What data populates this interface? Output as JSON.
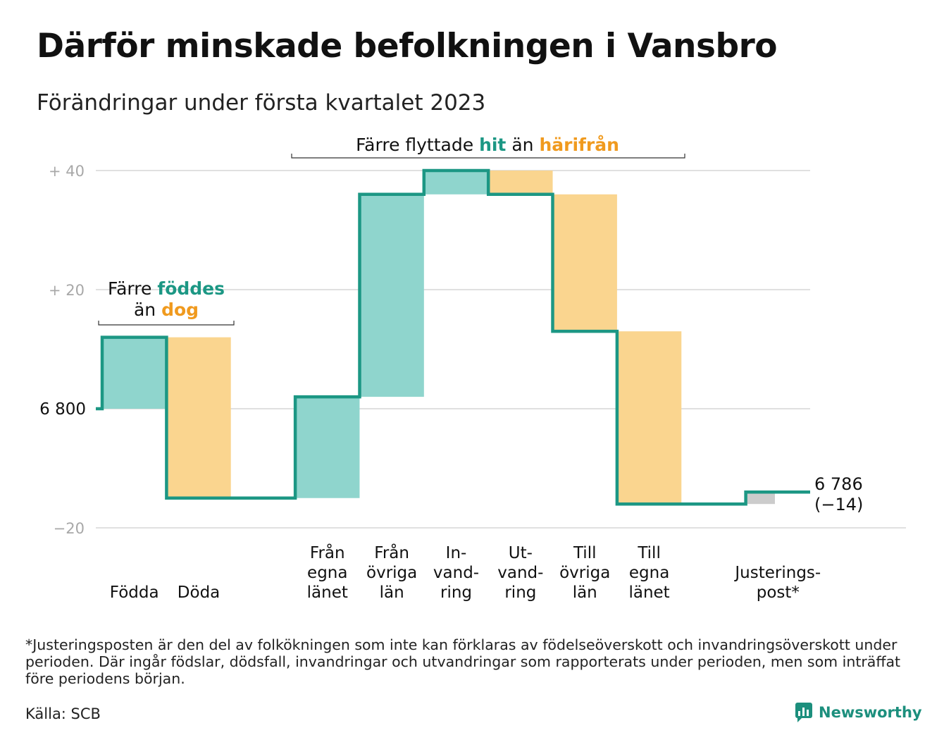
{
  "title": "Därför minskade befolkningen i Vansbro",
  "subtitle": "Förändringar under första kvartalet 2023",
  "colors": {
    "increase": "#8fd5cd",
    "decrease": "#fad58f",
    "adjustment": "#cccccc",
    "line": "#1c9784",
    "grid": "#e0e0e0",
    "tick": "#a8a8a8",
    "teal_text": "#1c9784",
    "orange_text": "#f09a1e"
  },
  "chart_data": {
    "type": "waterfall",
    "start_value": 6800,
    "end_value": 6786,
    "net_change": -14,
    "y_ticks": [
      {
        "value": 40,
        "label": "+ 40"
      },
      {
        "value": 20,
        "label": "+ 20"
      },
      {
        "value": 0,
        "label": "6 800"
      },
      {
        "value": -20,
        "label": "−20"
      }
    ],
    "ylim": [
      -20,
      40
    ],
    "steps": [
      {
        "label": [
          "Födda"
        ],
        "value": 12,
        "kind": "increase"
      },
      {
        "label": [
          "Döda"
        ],
        "value": -27,
        "kind": "decrease"
      },
      {
        "label": [],
        "value": 0,
        "kind": "gap"
      },
      {
        "label": [
          "Från",
          "egna",
          "länet"
        ],
        "value": 17,
        "kind": "increase"
      },
      {
        "label": [
          "Från",
          "övriga",
          "län"
        ],
        "value": 34,
        "kind": "increase"
      },
      {
        "label": [
          "In-",
          "vand-",
          "ring"
        ],
        "value": 4,
        "kind": "increase"
      },
      {
        "label": [
          "Ut-",
          "vand-",
          "ring"
        ],
        "value": -4,
        "kind": "decrease"
      },
      {
        "label": [
          "Till",
          "övriga",
          "län"
        ],
        "value": -23,
        "kind": "decrease"
      },
      {
        "label": [
          "Till",
          "egna",
          "länet"
        ],
        "value": -29,
        "kind": "decrease"
      },
      {
        "label": [],
        "value": 0,
        "kind": "gap"
      },
      {
        "label": [
          "Justerings-",
          "post*"
        ],
        "value": 2,
        "kind": "adjustment"
      }
    ],
    "end_label": {
      "value": "6 786",
      "change": "(−14)"
    },
    "annotations": {
      "births": {
        "line1_pre": "Färre ",
        "line1_hi": "föddes",
        "line2_pre": "än ",
        "line2_hi": "dog"
      },
      "migration": {
        "pre": "Färre flyttade ",
        "hi1": "hit",
        "mid": " än ",
        "hi2": "härifrån"
      }
    }
  },
  "footnote": "*Justeringsposten är den del av folkökningen som inte kan förklaras av födelseöverskott och invandringsöverskott under perioden. Där ingår födslar, dödsfall, invandringar och utvandringar som rapporterats under perioden, men som inträffat före periodens början.",
  "source": "Källa: SCB",
  "brand": {
    "name": "Newsworthy",
    "icon": "newsworthy-logo-icon"
  }
}
